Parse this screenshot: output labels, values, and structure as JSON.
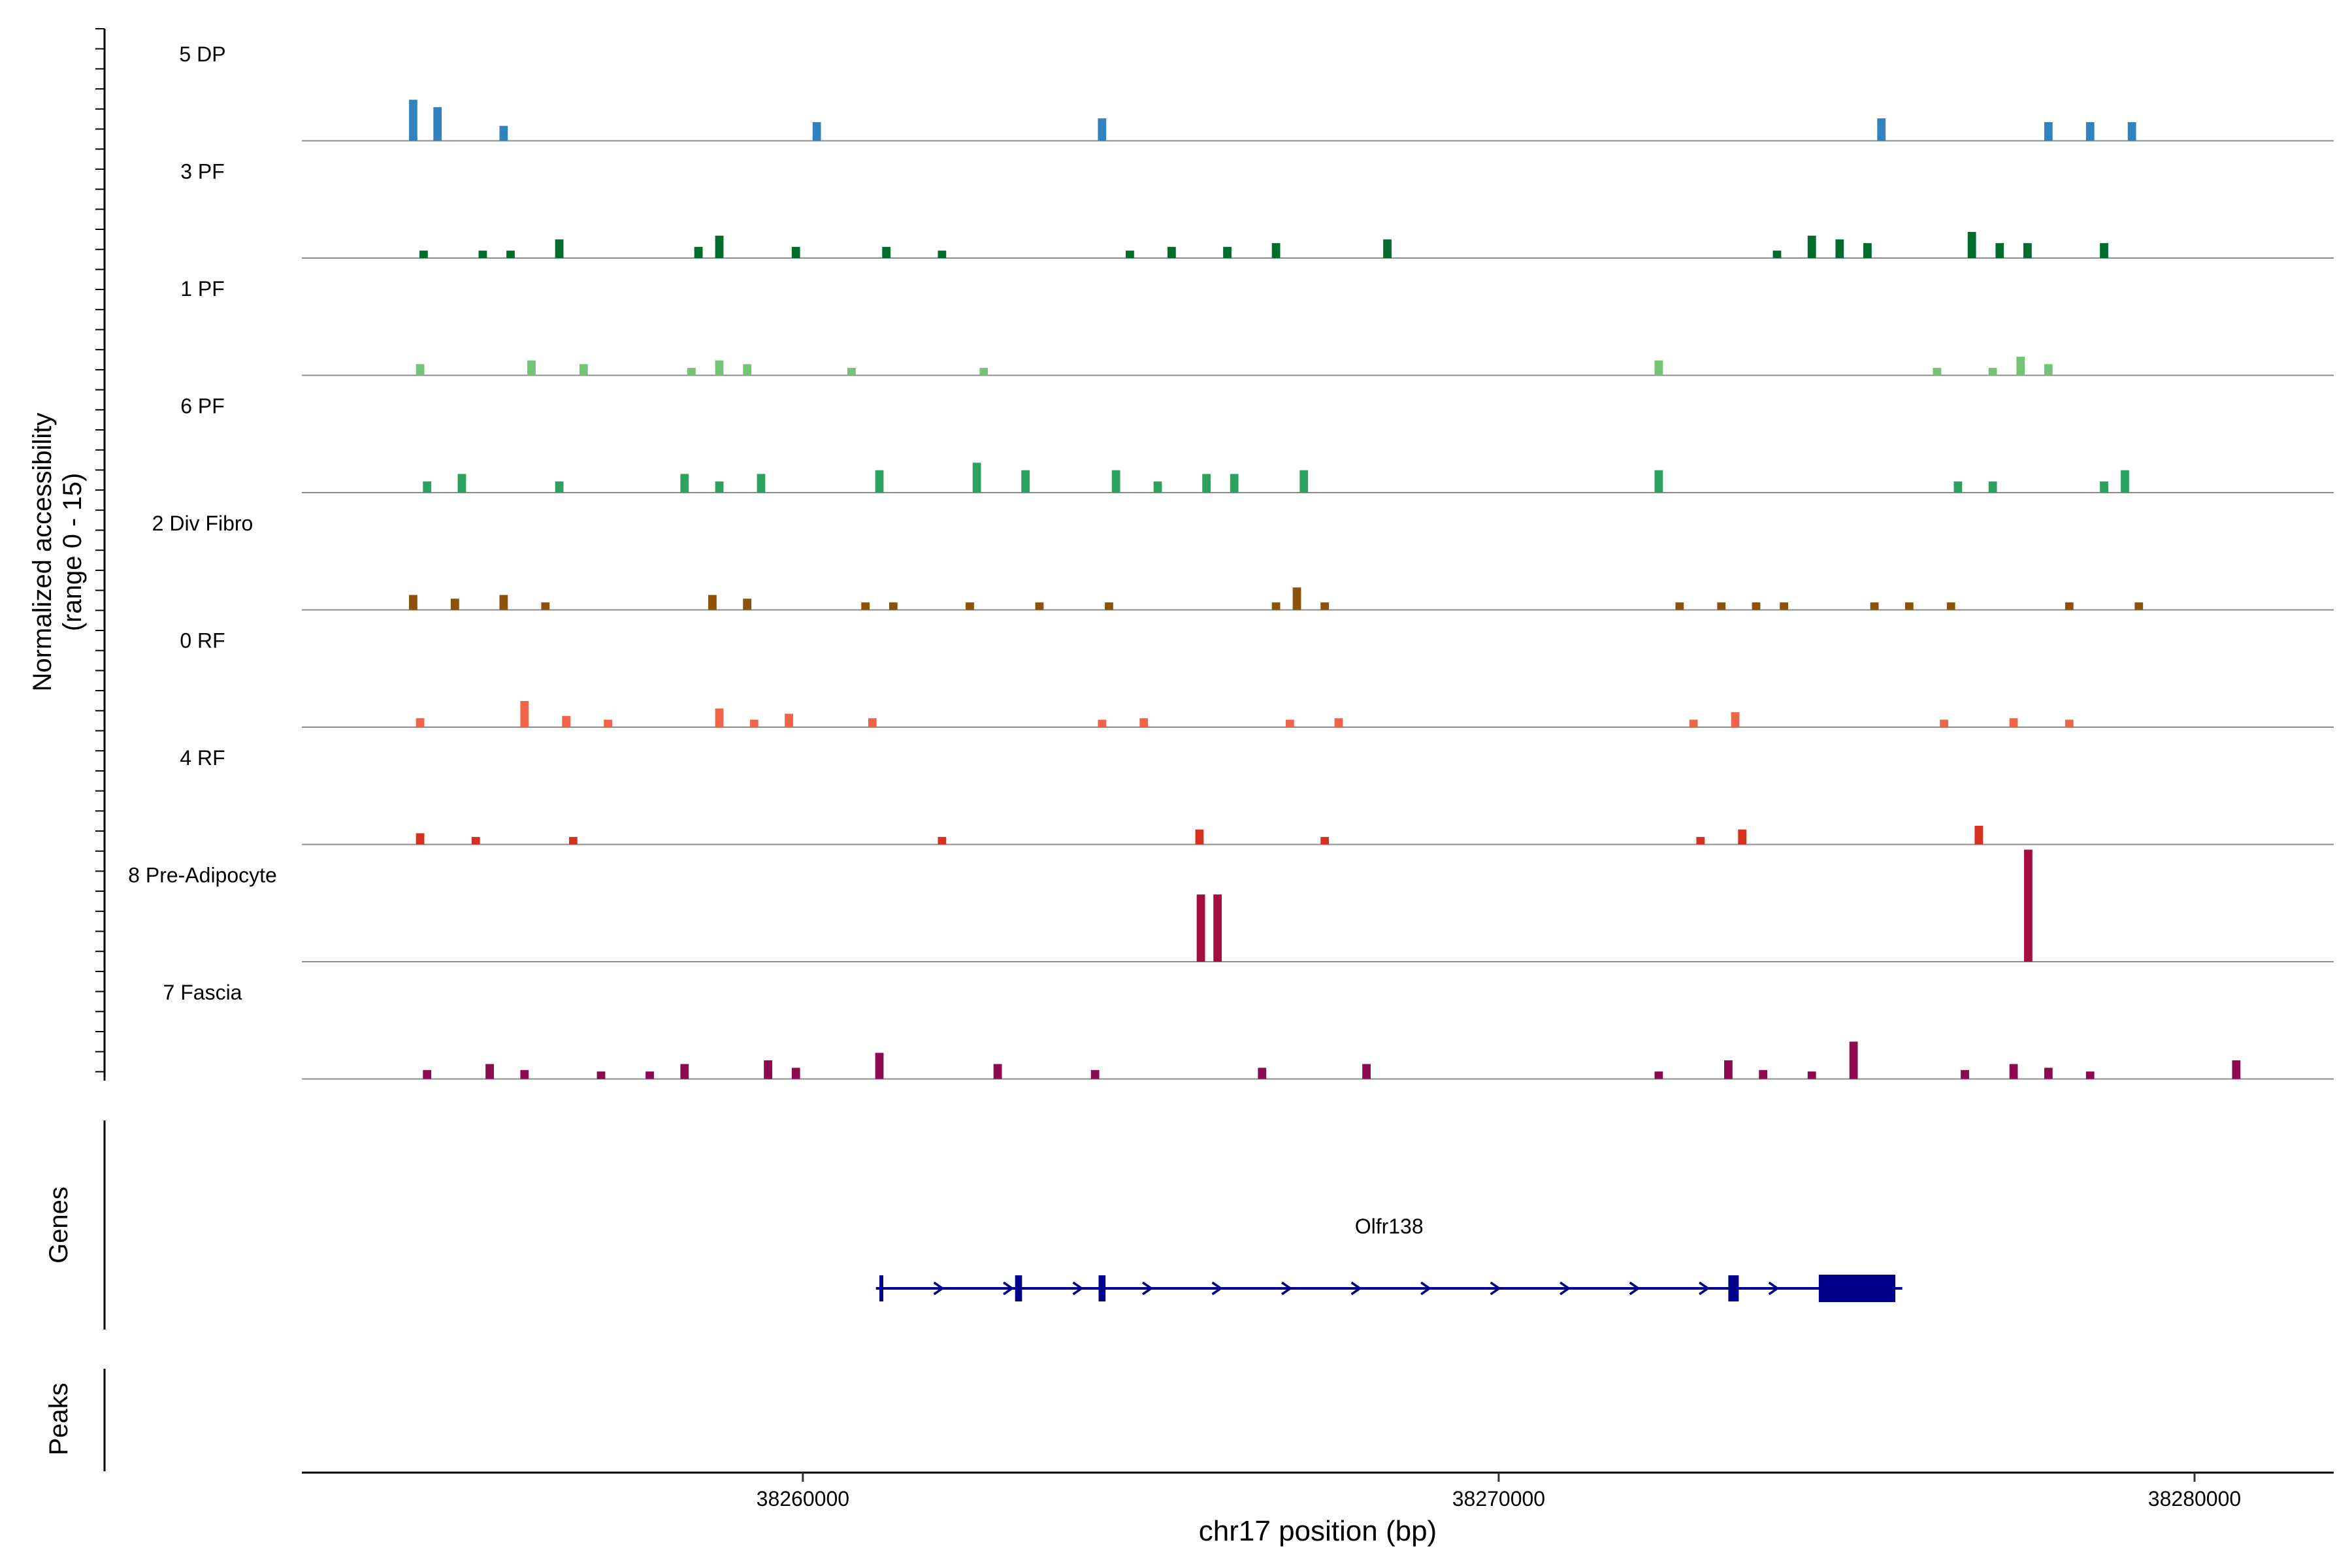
{
  "chart_data": {
    "type": "coverage",
    "title": "",
    "ylabel": "Normalized accessibility\n(range 0 - 15)",
    "ylim": [
      0,
      15
    ],
    "xlabel": "chr17 position (bp)",
    "xlim": [
      38252800,
      38282000
    ],
    "xticks": [
      38260000,
      38270000,
      38280000
    ],
    "xtick_labels": [
      "38260000",
      "38270000",
      "38280000"
    ],
    "tracks": [
      {
        "name": "5 DP",
        "color": "#3182bd",
        "peaks": [
          [
            38254400,
            5.5
          ],
          [
            38254750,
            4.5
          ],
          [
            38255700,
            2
          ],
          [
            38260200,
            2.5
          ],
          [
            38264300,
            3
          ],
          [
            38275500,
            3
          ],
          [
            38277900,
            2.5
          ],
          [
            38278500,
            2.5
          ],
          [
            38279100,
            2.5
          ]
        ]
      },
      {
        "name": "3 PF",
        "color": "#006d2c",
        "peaks": [
          [
            38254550,
            1
          ],
          [
            38255400,
            1
          ],
          [
            38255800,
            1
          ],
          [
            38256500,
            2.5
          ],
          [
            38258500,
            1.5
          ],
          [
            38258800,
            3
          ],
          [
            38259900,
            1.5
          ],
          [
            38261200,
            1.5
          ],
          [
            38262000,
            1
          ],
          [
            38264700,
            1
          ],
          [
            38265300,
            1.5
          ],
          [
            38266100,
            1.5
          ],
          [
            38266800,
            2
          ],
          [
            38268400,
            2.5
          ],
          [
            38274000,
            1
          ],
          [
            38274500,
            3
          ],
          [
            38274900,
            2.5
          ],
          [
            38275300,
            2
          ],
          [
            38276800,
            3.5
          ],
          [
            38277200,
            2
          ],
          [
            38277600,
            2
          ],
          [
            38278700,
            2
          ]
        ]
      },
      {
        "name": "1 PF",
        "color": "#74c476",
        "peaks": [
          [
            38254500,
            1.5
          ],
          [
            38256100,
            2
          ],
          [
            38256850,
            1.5
          ],
          [
            38258400,
            1
          ],
          [
            38258800,
            2
          ],
          [
            38259200,
            1.5
          ],
          [
            38260700,
            1
          ],
          [
            38262600,
            1
          ],
          [
            38272300,
            2
          ],
          [
            38276300,
            1
          ],
          [
            38277100,
            1
          ],
          [
            38277500,
            2.5
          ],
          [
            38277900,
            1.5
          ]
        ]
      },
      {
        "name": "6 PF",
        "color": "#2ca25f",
        "peaks": [
          [
            38254600,
            1.5
          ],
          [
            38255100,
            2.5
          ],
          [
            38256500,
            1.5
          ],
          [
            38258300,
            2.5
          ],
          [
            38258800,
            1.5
          ],
          [
            38259400,
            2.5
          ],
          [
            38261100,
            3
          ],
          [
            38262500,
            4
          ],
          [
            38263200,
            3
          ],
          [
            38264500,
            3
          ],
          [
            38265100,
            1.5
          ],
          [
            38265800,
            2.5
          ],
          [
            38266200,
            2.5
          ],
          [
            38267200,
            3
          ],
          [
            38272300,
            3
          ],
          [
            38276600,
            1.5
          ],
          [
            38277100,
            1.5
          ],
          [
            38278700,
            1.5
          ],
          [
            38279000,
            3
          ]
        ]
      },
      {
        "name": "2 Div Fibro",
        "color": "#8c510a",
        "peaks": [
          [
            38254400,
            2
          ],
          [
            38255000,
            1.5
          ],
          [
            38255700,
            2
          ],
          [
            38256300,
            1
          ],
          [
            38258700,
            2
          ],
          [
            38259200,
            1.5
          ],
          [
            38260900,
            1
          ],
          [
            38261300,
            1
          ],
          [
            38262400,
            1
          ],
          [
            38263400,
            1
          ],
          [
            38264400,
            1
          ],
          [
            38266800,
            1
          ],
          [
            38267100,
            3
          ],
          [
            38267500,
            1
          ],
          [
            38272600,
            1
          ],
          [
            38273200,
            1
          ],
          [
            38273700,
            1
          ],
          [
            38274100,
            1
          ],
          [
            38275400,
            1
          ],
          [
            38275900,
            1
          ],
          [
            38276500,
            1
          ],
          [
            38278200,
            1
          ],
          [
            38279200,
            1
          ]
        ]
      },
      {
        "name": "0 RF",
        "color": "#ef6548",
        "peaks": [
          [
            38254500,
            1.2
          ],
          [
            38256000,
            3.5
          ],
          [
            38256600,
            1.5
          ],
          [
            38257200,
            1
          ],
          [
            38258800,
            2.5
          ],
          [
            38259300,
            1
          ],
          [
            38259800,
            1.8
          ],
          [
            38261000,
            1.2
          ],
          [
            38264300,
            1
          ],
          [
            38264900,
            1.2
          ],
          [
            38267000,
            1
          ],
          [
            38267700,
            1.2
          ],
          [
            38272800,
            1
          ],
          [
            38273400,
            2
          ],
          [
            38276400,
            1
          ],
          [
            38277400,
            1.2
          ],
          [
            38278200,
            1
          ]
        ]
      },
      {
        "name": "4 RF",
        "color": "#d7301f",
        "peaks": [
          [
            38254500,
            1.5
          ],
          [
            38255300,
            1
          ],
          [
            38256700,
            1
          ],
          [
            38262000,
            1
          ],
          [
            38265700,
            2
          ],
          [
            38267500,
            1
          ],
          [
            38272900,
            1
          ],
          [
            38273500,
            2
          ],
          [
            38276900,
            2.5
          ]
        ]
      },
      {
        "name": "8 Pre-Adipocyte",
        "color": "#a50f40",
        "peaks": [
          [
            38265720,
            9
          ],
          [
            38265960,
            9
          ],
          [
            38277610,
            15
          ]
        ]
      },
      {
        "name": "7 Fascia",
        "color": "#8b0a50",
        "peaks": [
          [
            38254600,
            1.2
          ],
          [
            38255500,
            2
          ],
          [
            38256000,
            1.2
          ],
          [
            38257100,
            1
          ],
          [
            38257800,
            1
          ],
          [
            38258300,
            2
          ],
          [
            38259500,
            2.5
          ],
          [
            38259900,
            1.5
          ],
          [
            38261100,
            3.5
          ],
          [
            38262800,
            2
          ],
          [
            38264200,
            1.2
          ],
          [
            38266600,
            1.5
          ],
          [
            38268100,
            2
          ],
          [
            38272300,
            1
          ],
          [
            38273300,
            2.5
          ],
          [
            38273800,
            1.2
          ],
          [
            38274500,
            1
          ],
          [
            38275100,
            5
          ],
          [
            38276700,
            1.2
          ],
          [
            38277400,
            2
          ],
          [
            38277900,
            1.5
          ],
          [
            38278500,
            1
          ],
          [
            38280600,
            2.5
          ]
        ]
      }
    ],
    "genes_label": "Genes",
    "peaks_label": "Peaks",
    "gene": {
      "name": "Olfr138",
      "strand": "+",
      "start": 38261050,
      "end": 38275800,
      "color": "#00008b",
      "exons": [
        [
          38261100,
          38261150
        ],
        [
          38263050,
          38263150
        ],
        [
          38264250,
          38264350
        ],
        [
          38273300,
          38273450
        ],
        [
          38274600,
          38275700
        ]
      ]
    }
  }
}
